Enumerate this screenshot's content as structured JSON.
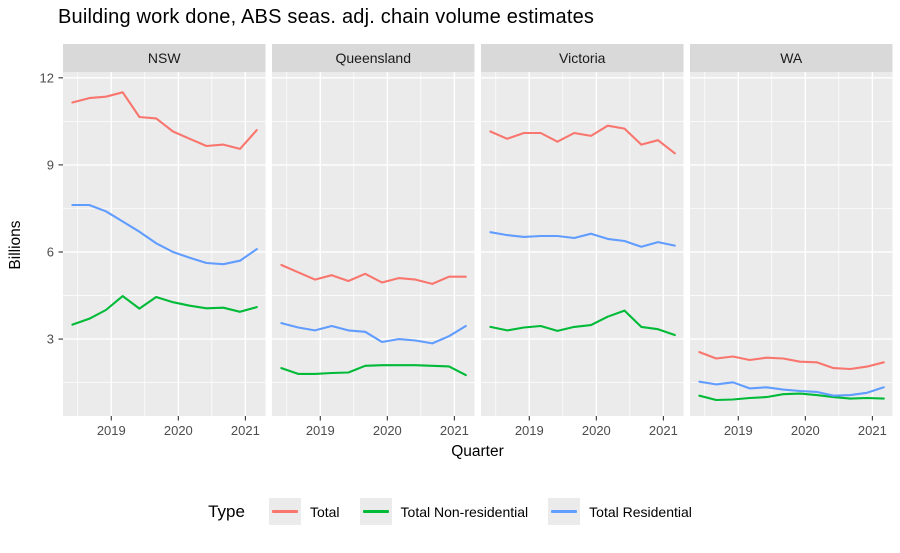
{
  "title": "Building work done, ABS seas. adj. chain volume estimates",
  "legend": {
    "title": "Type"
  },
  "axes": {
    "x_label": "Quarter",
    "y_label": "Billions"
  },
  "colors": {
    "background": "#FFFFFF",
    "panel_bg": "#EBEBEB",
    "strip_bg": "#D9D9D9",
    "grid": "#FFFFFF",
    "axis_text": "#4D4D4D",
    "tick_mark": "#333333",
    "strip_text": "#1A1A1A",
    "series_total": "#F8766D",
    "series_non_residential": "#00BA38",
    "series_residential": "#619CFF"
  },
  "chart_data": {
    "type": "line",
    "title": "Building work done, ABS seas. adj. chain volume estimates",
    "xlabel": "Quarter",
    "ylabel": "Billions",
    "legend_title": "Type",
    "legend_position": "bottom",
    "grid": true,
    "facet_labels": [
      "NSW",
      "Queensland",
      "Victoria",
      "WA"
    ],
    "x_quarters": [
      "Jun 2018",
      "Sep 2018",
      "Dec 2018",
      "Mar 2019",
      "Jun 2019",
      "Sep 2019",
      "Dec 2019",
      "Mar 2020",
      "Jun 2020",
      "Sep 2020",
      "Dec 2020",
      "Mar 2021"
    ],
    "x_numeric": [
      2018.42,
      2018.67,
      2018.92,
      2019.17,
      2019.42,
      2019.67,
      2019.92,
      2020.17,
      2020.42,
      2020.67,
      2020.92,
      2021.17
    ],
    "xlim": [
      2018.28,
      2021.3
    ],
    "ylim": [
      0.35,
      12.2
    ],
    "y_major_ticks": [
      3,
      6,
      9,
      12
    ],
    "y_minor_ticks": [
      1.5,
      4.5,
      7.5,
      10.5
    ],
    "x_major_ticks": [
      {
        "value": 2019,
        "label": "2019"
      },
      {
        "value": 2020,
        "label": "2020"
      },
      {
        "value": 2021,
        "label": "2021"
      }
    ],
    "x_minor_ticks": [
      2018.5,
      2019.5,
      2020.5
    ],
    "series_meta": [
      {
        "name": "Total",
        "color": "#F8766D"
      },
      {
        "name": "Total Non-residential",
        "color": "#00BA38"
      },
      {
        "name": "Total Residential",
        "color": "#619CFF"
      }
    ],
    "facets": [
      {
        "label": "NSW",
        "series": [
          {
            "name": "Total",
            "values": [
              11.15,
              11.3,
              11.35,
              11.5,
              10.65,
              10.6,
              10.15,
              9.9,
              9.65,
              9.7,
              9.55,
              10.2
            ]
          },
          {
            "name": "Total Non-residential",
            "values": [
              3.5,
              3.7,
              4.0,
              4.48,
              4.05,
              4.45,
              4.27,
              4.15,
              4.06,
              4.08,
              3.94,
              4.1
            ]
          },
          {
            "name": "Total Residential",
            "values": [
              7.62,
              7.62,
              7.4,
              7.05,
              6.7,
              6.3,
              6.0,
              5.8,
              5.62,
              5.58,
              5.7,
              6.1
            ]
          }
        ]
      },
      {
        "label": "Queensland",
        "series": [
          {
            "name": "Total",
            "values": [
              5.55,
              5.3,
              5.05,
              5.2,
              5.0,
              5.25,
              4.95,
              5.1,
              5.05,
              4.9,
              5.15,
              5.15
            ]
          },
          {
            "name": "Total Non-residential",
            "values": [
              2.0,
              1.8,
              1.8,
              1.83,
              1.85,
              2.08,
              2.1,
              2.1,
              2.1,
              2.08,
              2.06,
              1.76
            ]
          },
          {
            "name": "Total Residential",
            "values": [
              3.55,
              3.4,
              3.3,
              3.45,
              3.3,
              3.25,
              2.9,
              3.0,
              2.95,
              2.85,
              3.1,
              3.45
            ]
          }
        ]
      },
      {
        "label": "Victoria",
        "series": [
          {
            "name": "Total",
            "values": [
              10.15,
              9.9,
              10.1,
              10.1,
              9.8,
              10.1,
              10.0,
              10.35,
              10.25,
              9.7,
              9.85,
              9.4
            ]
          },
          {
            "name": "Total Non-residential",
            "values": [
              3.42,
              3.3,
              3.4,
              3.45,
              3.28,
              3.42,
              3.48,
              3.77,
              3.98,
              3.42,
              3.34,
              3.14
            ]
          },
          {
            "name": "Total Residential",
            "values": [
              6.68,
              6.58,
              6.52,
              6.55,
              6.55,
              6.48,
              6.63,
              6.45,
              6.38,
              6.18,
              6.34,
              6.22
            ]
          }
        ]
      },
      {
        "label": "WA",
        "series": [
          {
            "name": "Total",
            "values": [
              2.55,
              2.33,
              2.4,
              2.28,
              2.36,
              2.33,
              2.22,
              2.2,
              2.0,
              1.97,
              2.05,
              2.2
            ]
          },
          {
            "name": "Total Non-residential",
            "values": [
              1.05,
              0.9,
              0.92,
              0.97,
              1.0,
              1.1,
              1.12,
              1.07,
              1.0,
              0.95,
              0.97,
              0.95
            ]
          },
          {
            "name": "Total Residential",
            "values": [
              1.53,
              1.44,
              1.51,
              1.3,
              1.34,
              1.26,
              1.21,
              1.18,
              1.05,
              1.07,
              1.15,
              1.34
            ]
          }
        ]
      }
    ]
  }
}
